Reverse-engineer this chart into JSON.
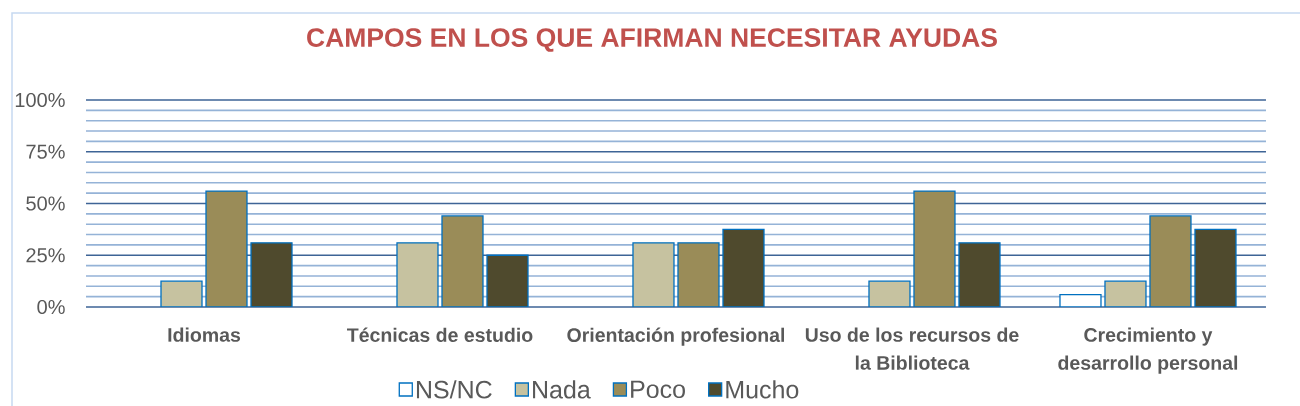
{
  "chart_data": {
    "type": "bar",
    "title": "CAMPOS EN LOS QUE AFIRMAN NECESITAR AYUDAS",
    "categories": [
      "Idiomas",
      "Técnicas de estudio",
      "Orientación profesional",
      "Uso de los recursos de la Biblioteca",
      "Crecimiento y desarrollo personal"
    ],
    "series": [
      {
        "name": "NS/NC",
        "color": "#0070c0",
        "values": [
          null,
          null,
          null,
          null,
          6
        ]
      },
      {
        "name": "Nada",
        "color": "#c6c2a0",
        "values": [
          12.5,
          31,
          31,
          12.5,
          12.5
        ]
      },
      {
        "name": "Poco",
        "color": "#9a8c58",
        "values": [
          56,
          44,
          31,
          56,
          44
        ]
      },
      {
        "name": "Mucho",
        "color": "#4f4a2d",
        "values": [
          31,
          25,
          37.5,
          31,
          37.5
        ]
      }
    ],
    "ylim": [
      0,
      100
    ],
    "yticks": [
      {
        "value": 0,
        "label": "0%"
      },
      {
        "value": 5,
        "label": null
      },
      {
        "value": 10,
        "label": null
      },
      {
        "value": 15,
        "label": null
      },
      {
        "value": 20,
        "label": null
      },
      {
        "value": 25,
        "label": "25%"
      },
      {
        "value": 30,
        "label": null
      },
      {
        "value": 35,
        "label": null
      },
      {
        "value": 40,
        "label": null
      },
      {
        "value": 45,
        "label": null
      },
      {
        "value": 50,
        "label": "50%"
      },
      {
        "value": 55,
        "label": null
      },
      {
        "value": 60,
        "label": null
      },
      {
        "value": 65,
        "label": null
      },
      {
        "value": 70,
        "label": null
      },
      {
        "value": 75,
        "label": "75%"
      },
      {
        "value": 80,
        "label": null
      },
      {
        "value": 85,
        "label": null
      },
      {
        "value": 90,
        "label": null
      },
      {
        "value": 95,
        "label": null
      },
      {
        "value": 100,
        "label": "100%"
      }
    ],
    "grid": "y",
    "legend": "bottom"
  }
}
